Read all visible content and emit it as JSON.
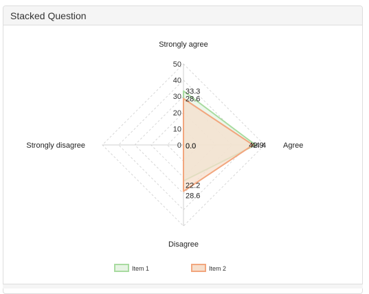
{
  "panel": {
    "title": "Stacked Question"
  },
  "chart_data": {
    "type": "radar",
    "axes": [
      "Strongly agree",
      "Agree",
      "Disagree",
      "Strongly disagree"
    ],
    "r_ticks": [
      "0",
      "10",
      "20",
      "30",
      "40",
      "50"
    ],
    "r_max": 50,
    "series": [
      {
        "name": "Item 1",
        "values": [
          33.3,
          44.4,
          22.2,
          0.0
        ],
        "labels": [
          "33.3",
          "44.4",
          "22.2",
          "0.0"
        ],
        "stroke": "#a8dba0",
        "fill": "#e6f3e3"
      },
      {
        "name": "Item 2",
        "values": [
          28.6,
          42.9,
          28.6,
          0.0
        ],
        "labels": [
          "28.6",
          "42.9",
          "28.6",
          "0.0"
        ],
        "stroke": "#f2a67e",
        "fill": "#f6dfcc"
      }
    ],
    "grid": true,
    "legend": "bottom"
  }
}
